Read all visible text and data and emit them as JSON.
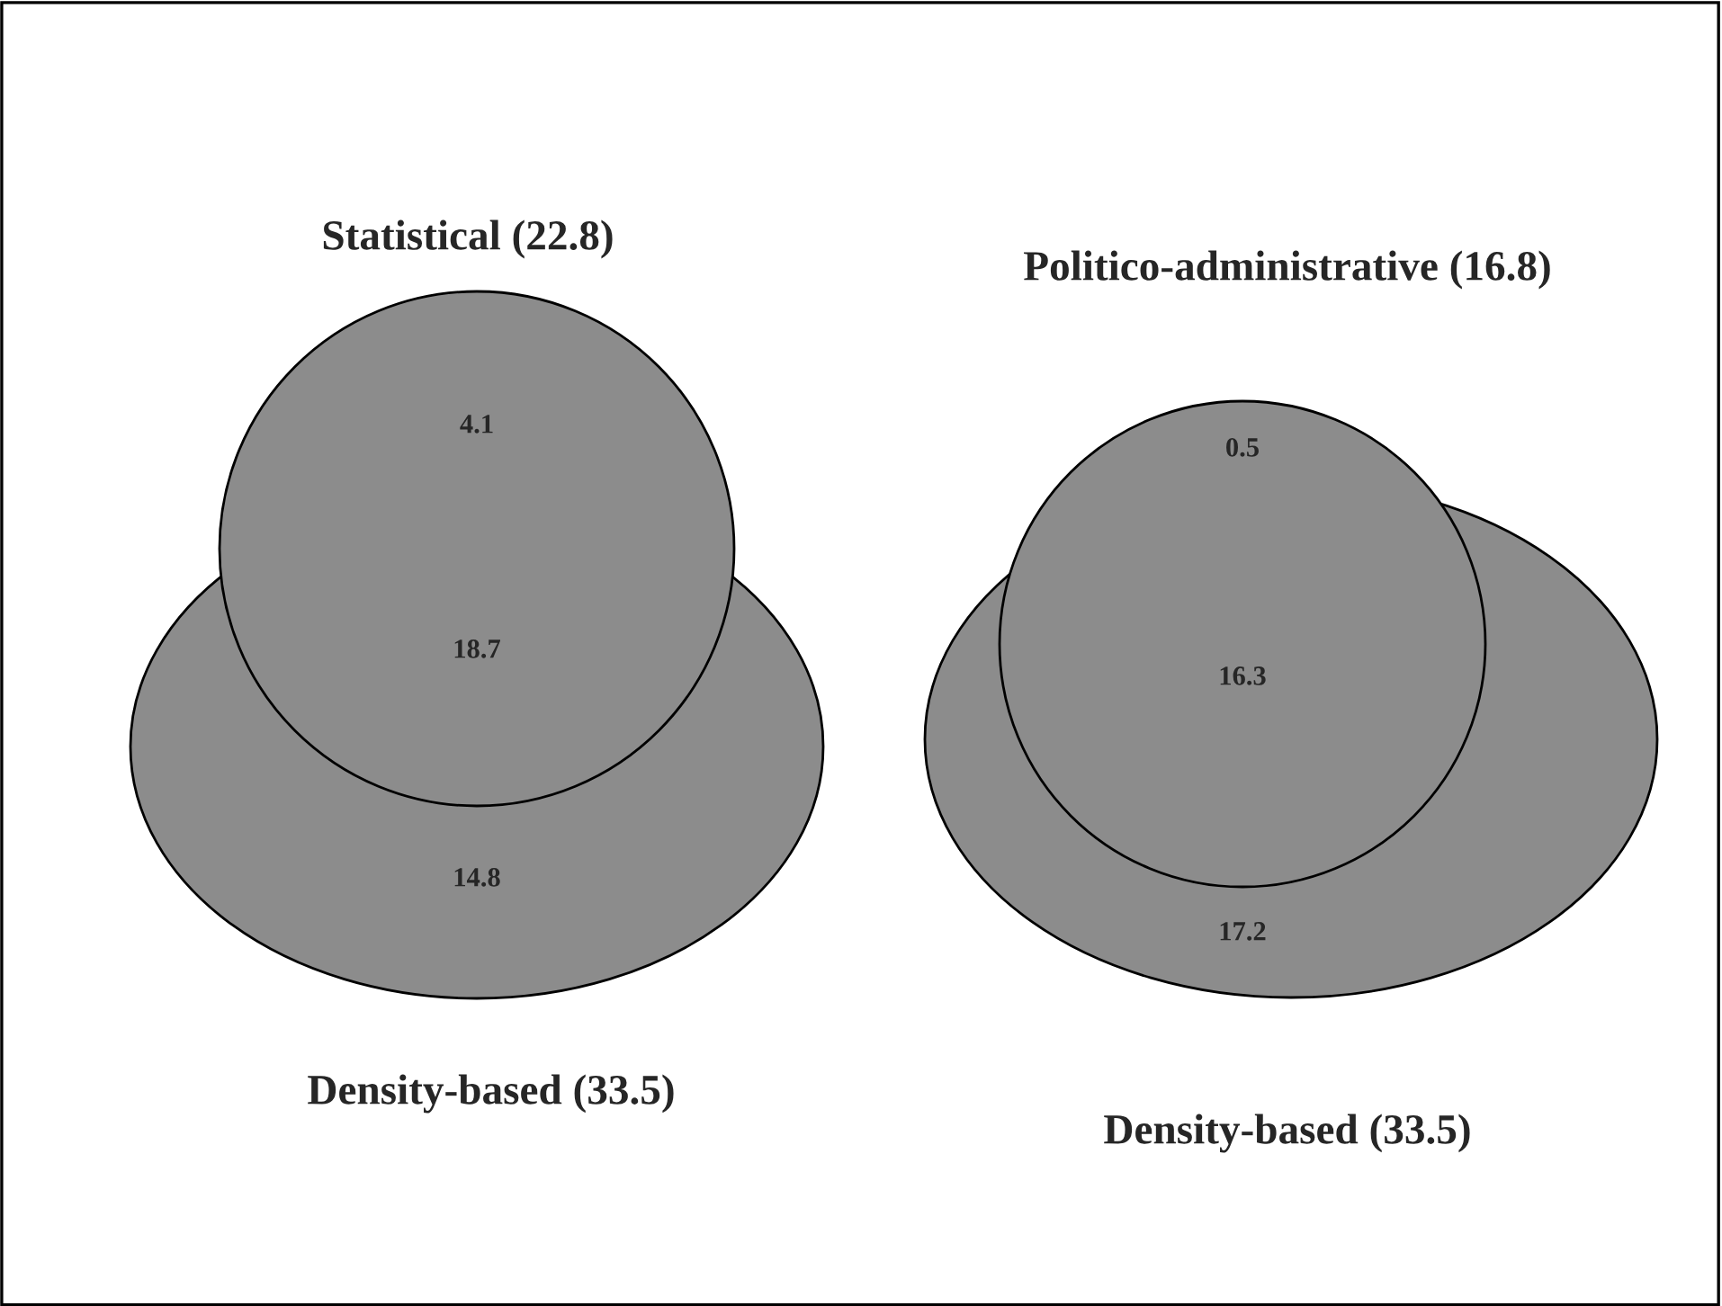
{
  "chart_data": [
    {
      "type": "other",
      "color": "#8c8c8c",
      "annotations": [
        "Statistical (22.8)",
        "Density-based (33.5)"
      ],
      "values": [
        4.1,
        18.7,
        14.8
      ],
      "data_labels": true
    },
    {
      "type": "other",
      "color": "#8c8c8c",
      "annotations": [
        "Politico-administrative (16.8)",
        "Density-based (33.5)"
      ],
      "values": [
        0.5,
        16.3,
        17.2
      ],
      "data_labels": true
    }
  ]
}
